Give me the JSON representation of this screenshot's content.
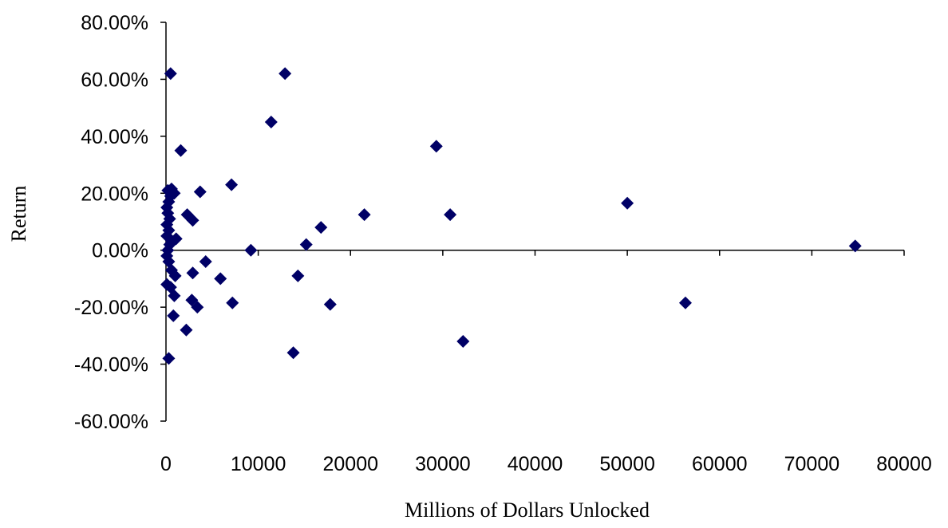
{
  "chart_data": {
    "type": "scatter",
    "title": "",
    "xlabel": "Millions of Dollars Unlocked",
    "ylabel": "Return",
    "xlim": [
      0,
      80000
    ],
    "ylim": [
      -0.6,
      0.8
    ],
    "x_ticks": [
      0,
      10000,
      20000,
      30000,
      40000,
      50000,
      60000,
      70000,
      80000
    ],
    "x_tick_labels": [
      "0",
      "10000",
      "20000",
      "30000",
      "40000",
      "50000",
      "60000",
      "70000",
      "80000"
    ],
    "y_ticks": [
      -0.6,
      -0.4,
      -0.2,
      0.0,
      0.2,
      0.4,
      0.6,
      0.8
    ],
    "y_tick_labels": [
      "-60.00%",
      "-40.00%",
      "-20.00%",
      "0.00%",
      "20.00%",
      "40.00%",
      "60.00%",
      "80.00%"
    ],
    "grid": false,
    "legend": "none",
    "marker": "diamond",
    "marker_color": "#000066",
    "points": [
      {
        "x": 500,
        "y": 0.62
      },
      {
        "x": 12900,
        "y": 0.62
      },
      {
        "x": 11400,
        "y": 0.45
      },
      {
        "x": 29300,
        "y": 0.365
      },
      {
        "x": 1600,
        "y": 0.35
      },
      {
        "x": 7100,
        "y": 0.23
      },
      {
        "x": 3700,
        "y": 0.205
      },
      {
        "x": 50000,
        "y": 0.165
      },
      {
        "x": 21500,
        "y": 0.125
      },
      {
        "x": 30800,
        "y": 0.125
      },
      {
        "x": 2300,
        "y": 0.125
      },
      {
        "x": 2900,
        "y": 0.105
      },
      {
        "x": 16800,
        "y": 0.08
      },
      {
        "x": 15200,
        "y": 0.02
      },
      {
        "x": 74700,
        "y": 0.015
      },
      {
        "x": 9200,
        "y": 0.0
      },
      {
        "x": 4300,
        "y": -0.04
      },
      {
        "x": 2900,
        "y": -0.08
      },
      {
        "x": 14300,
        "y": -0.09
      },
      {
        "x": 5900,
        "y": -0.1
      },
      {
        "x": 7200,
        "y": -0.185
      },
      {
        "x": 17800,
        "y": -0.19
      },
      {
        "x": 56300,
        "y": -0.185
      },
      {
        "x": 2800,
        "y": -0.175
      },
      {
        "x": 3400,
        "y": -0.2
      },
      {
        "x": 800,
        "y": -0.23
      },
      {
        "x": 2200,
        "y": -0.28
      },
      {
        "x": 32200,
        "y": -0.32
      },
      {
        "x": 13800,
        "y": -0.36
      },
      {
        "x": 300,
        "y": -0.38
      },
      {
        "x": 100,
        "y": -0.12
      },
      {
        "x": 500,
        "y": -0.13
      },
      {
        "x": 900,
        "y": -0.16
      },
      {
        "x": 600,
        "y": -0.07
      },
      {
        "x": 300,
        "y": -0.04
      },
      {
        "x": 100,
        "y": -0.02
      },
      {
        "x": 200,
        "y": 0.0
      },
      {
        "x": 400,
        "y": 0.02
      },
      {
        "x": 700,
        "y": 0.03
      },
      {
        "x": 100,
        "y": 0.05
      },
      {
        "x": 300,
        "y": 0.07
      },
      {
        "x": 100,
        "y": 0.09
      },
      {
        "x": 400,
        "y": 0.11
      },
      {
        "x": 200,
        "y": 0.13
      },
      {
        "x": 100,
        "y": 0.15
      },
      {
        "x": 300,
        "y": 0.17
      },
      {
        "x": 500,
        "y": 0.19
      },
      {
        "x": 200,
        "y": 0.21
      },
      {
        "x": 600,
        "y": 0.215
      },
      {
        "x": 900,
        "y": 0.2
      },
      {
        "x": 1000,
        "y": -0.09
      },
      {
        "x": 1100,
        "y": 0.04
      }
    ]
  }
}
